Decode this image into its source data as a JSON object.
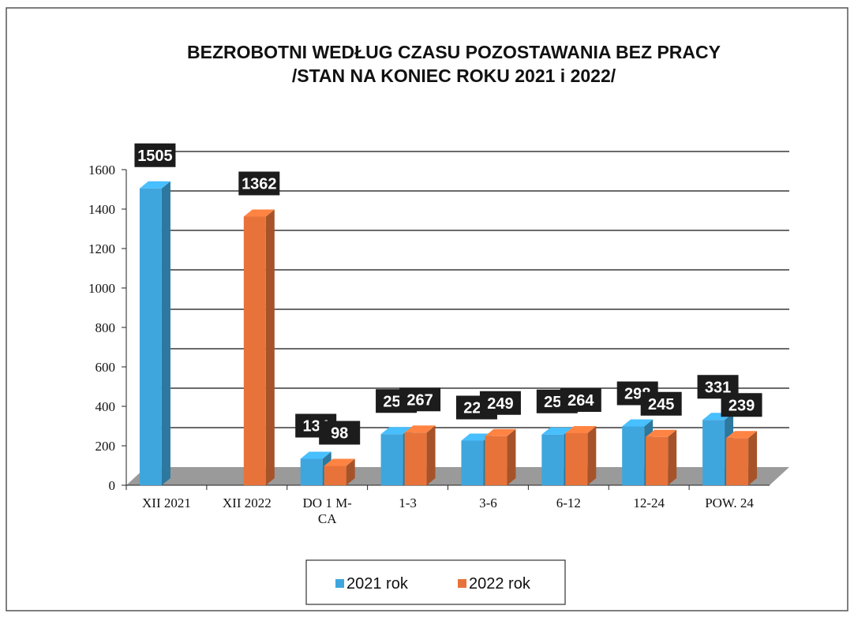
{
  "chart_data": {
    "type": "bar3d",
    "title": "BEZROBOTNI WEDŁUG CZASU POZOSTAWANIA BEZ PRACY",
    "subtitle": "/STAN NA KONIEC ROKU 2021 i 2022/",
    "categories": [
      "XII 2021",
      "XII 2022",
      "DO 1 M-CA",
      "1-3",
      "3-6",
      "6-12",
      "12-24",
      "POW. 24"
    ],
    "series": [
      {
        "name": "2021 rok",
        "color": "#3fa6dd",
        "values": [
          1505,
          null,
          134,
          259,
          226,
          257,
          298,
          331
        ]
      },
      {
        "name": "2022 rok",
        "color": "#e8733a",
        "values": [
          null,
          1362,
          98,
          267,
          249,
          264,
          245,
          239
        ]
      }
    ],
    "ylim": [
      0,
      1600
    ],
    "yticks": [
      0,
      200,
      400,
      600,
      800,
      1000,
      1200,
      1400,
      1600
    ],
    "grid": true
  }
}
